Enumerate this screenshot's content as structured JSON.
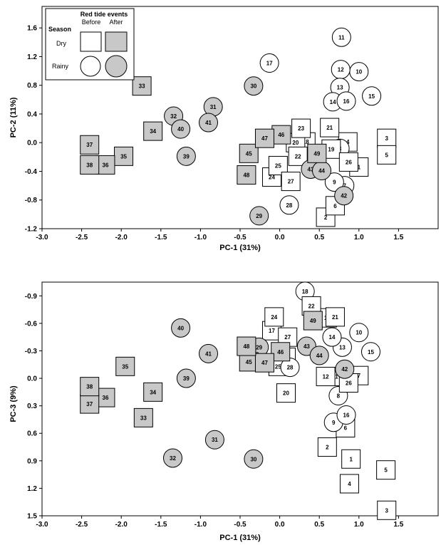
{
  "chart_data": [
    {
      "type": "scatter",
      "xlabel": "PC-1 (31%)",
      "ylabel": "PC-2 (11%)",
      "xlim": [
        -3.0,
        2.0
      ],
      "ylim": [
        -1.2,
        1.9
      ],
      "x_ticks": [
        "-3.0",
        "-2.5",
        "-2.0",
        "-1.5",
        "-1.0",
        "-0.5",
        "0.0",
        "0.5",
        "1.0",
        "1.5"
      ],
      "y_ticks": [
        "-1.2",
        "-0.8",
        "-0.4",
        "0.0",
        "0.4",
        "0.8",
        "1.2",
        "1.6"
      ],
      "points": [
        {
          "id": "1",
          "x": 1.0,
          "y": -0.34,
          "shape": "square",
          "fill": "white"
        },
        {
          "id": "2",
          "x": 0.58,
          "y": -1.04,
          "shape": "square",
          "fill": "white"
        },
        {
          "id": "3",
          "x": 1.35,
          "y": 0.06,
          "shape": "square",
          "fill": "white"
        },
        {
          "id": "4",
          "x": 0.86,
          "y": 0.01,
          "shape": "square",
          "fill": "white"
        },
        {
          "id": "5",
          "x": 1.35,
          "y": -0.17,
          "shape": "square",
          "fill": "white"
        },
        {
          "id": "6",
          "x": 0.7,
          "y": -0.88,
          "shape": "square",
          "fill": "white"
        },
        {
          "id": "7",
          "x": 0.82,
          "y": -0.6,
          "shape": "circle",
          "fill": "white"
        },
        {
          "id": "8",
          "x": 0.76,
          "y": -0.08,
          "shape": "circle",
          "fill": "white"
        },
        {
          "id": "9",
          "x": 0.69,
          "y": -0.55,
          "shape": "circle",
          "fill": "white"
        },
        {
          "id": "10",
          "x": 1.0,
          "y": 0.99,
          "shape": "circle",
          "fill": "white"
        },
        {
          "id": "11",
          "x": 0.78,
          "y": 1.47,
          "shape": "circle",
          "fill": "white"
        },
        {
          "id": "12",
          "x": 0.77,
          "y": 1.02,
          "shape": "circle",
          "fill": "white"
        },
        {
          "id": "13",
          "x": 0.76,
          "y": 0.77,
          "shape": "circle",
          "fill": "white"
        },
        {
          "id": "14",
          "x": 0.67,
          "y": 0.57,
          "shape": "circle",
          "fill": "white"
        },
        {
          "id": "15",
          "x": 1.16,
          "y": 0.65,
          "shape": "circle",
          "fill": "white"
        },
        {
          "id": "16",
          "x": 0.84,
          "y": 0.58,
          "shape": "circle",
          "fill": "white"
        },
        {
          "id": "17",
          "x": -0.13,
          "y": 1.11,
          "shape": "circle",
          "fill": "white"
        },
        {
          "id": "18",
          "x": 0.33,
          "y": 0.01,
          "shape": "square",
          "fill": "white"
        },
        {
          "id": "19",
          "x": 0.65,
          "y": -0.09,
          "shape": "square",
          "fill": "white"
        },
        {
          "id": "20",
          "x": 0.2,
          "y": 0.0,
          "shape": "square",
          "fill": "white"
        },
        {
          "id": "21",
          "x": 0.63,
          "y": 0.21,
          "shape": "square",
          "fill": "white"
        },
        {
          "id": "22",
          "x": 0.23,
          "y": -0.19,
          "shape": "square",
          "fill": "white"
        },
        {
          "id": "23",
          "x": 0.27,
          "y": 0.2,
          "shape": "square",
          "fill": "white"
        },
        {
          "id": "24",
          "x": -0.1,
          "y": -0.48,
          "shape": "square",
          "fill": "white"
        },
        {
          "id": "25",
          "x": -0.02,
          "y": -0.32,
          "shape": "square",
          "fill": "white"
        },
        {
          "id": "26",
          "x": 0.87,
          "y": -0.27,
          "shape": "square",
          "fill": "white"
        },
        {
          "id": "27",
          "x": 0.14,
          "y": -0.54,
          "shape": "square",
          "fill": "white"
        },
        {
          "id": "28",
          "x": 0.12,
          "y": -0.87,
          "shape": "circle",
          "fill": "white"
        },
        {
          "id": "29",
          "x": -0.26,
          "y": -1.02,
          "shape": "circle",
          "fill": "gray"
        },
        {
          "id": "30",
          "x": -0.33,
          "y": 0.79,
          "shape": "circle",
          "fill": "gray"
        },
        {
          "id": "31",
          "x": -0.84,
          "y": 0.5,
          "shape": "circle",
          "fill": "gray"
        },
        {
          "id": "32",
          "x": -1.34,
          "y": 0.37,
          "shape": "circle",
          "fill": "gray"
        },
        {
          "id": "33",
          "x": -1.74,
          "y": 0.79,
          "shape": "square",
          "fill": "gray"
        },
        {
          "id": "34",
          "x": -1.6,
          "y": 0.16,
          "shape": "square",
          "fill": "gray"
        },
        {
          "id": "35",
          "x": -1.97,
          "y": -0.19,
          "shape": "square",
          "fill": "gray"
        },
        {
          "id": "36",
          "x": -2.2,
          "y": -0.31,
          "shape": "square",
          "fill": "gray"
        },
        {
          "id": "37",
          "x": -2.4,
          "y": -0.03,
          "shape": "square",
          "fill": "gray"
        },
        {
          "id": "38",
          "x": -2.4,
          "y": -0.31,
          "shape": "square",
          "fill": "gray"
        },
        {
          "id": "39",
          "x": -1.18,
          "y": -0.19,
          "shape": "circle",
          "fill": "gray"
        },
        {
          "id": "40",
          "x": -1.25,
          "y": 0.19,
          "shape": "circle",
          "fill": "gray"
        },
        {
          "id": "41",
          "x": -0.9,
          "y": 0.28,
          "shape": "circle",
          "fill": "gray"
        },
        {
          "id": "42",
          "x": 0.81,
          "y": -0.74,
          "shape": "circle",
          "fill": "gray"
        },
        {
          "id": "43",
          "x": 0.39,
          "y": -0.37,
          "shape": "circle",
          "fill": "gray"
        },
        {
          "id": "44",
          "x": 0.53,
          "y": -0.39,
          "shape": "circle",
          "fill": "gray"
        },
        {
          "id": "45",
          "x": -0.39,
          "y": -0.15,
          "shape": "square",
          "fill": "gray"
        },
        {
          "id": "46",
          "x": 0.02,
          "y": 0.11,
          "shape": "square",
          "fill": "gray"
        },
        {
          "id": "47",
          "x": -0.19,
          "y": 0.06,
          "shape": "square",
          "fill": "gray"
        },
        {
          "id": "48",
          "x": -0.42,
          "y": -0.45,
          "shape": "square",
          "fill": "gray"
        },
        {
          "id": "49",
          "x": 0.47,
          "y": -0.15,
          "shape": "square",
          "fill": "gray"
        }
      ]
    },
    {
      "type": "scatter",
      "xlabel": "PC-1 (31%)",
      "ylabel": "PC-3 (9%)",
      "xlim": [
        -3.0,
        2.0
      ],
      "ylim": [
        1.5,
        -1.05
      ],
      "x_ticks": [
        "-3.0",
        "-2.5",
        "-2.0",
        "-1.5",
        "-1.0",
        "-0.5",
        "0.0",
        "0.5",
        "1.0",
        "1.5"
      ],
      "y_ticks": [
        "-0.9",
        "-0.6",
        "-0.3",
        "0.0",
        "0.3",
        "0.6",
        "0.9",
        "1.2",
        "1.5"
      ],
      "points": [
        {
          "id": "1",
          "x": 0.9,
          "y": 0.88,
          "shape": "square",
          "fill": "white"
        },
        {
          "id": "2",
          "x": 0.6,
          "y": 0.75,
          "shape": "square",
          "fill": "white"
        },
        {
          "id": "3",
          "x": 1.35,
          "y": 1.44,
          "shape": "square",
          "fill": "white"
        },
        {
          "id": "4",
          "x": 0.88,
          "y": 1.15,
          "shape": "square",
          "fill": "white"
        },
        {
          "id": "5",
          "x": 1.34,
          "y": 1.0,
          "shape": "square",
          "fill": "white"
        },
        {
          "id": "6",
          "x": 0.83,
          "y": 0.54,
          "shape": "square",
          "fill": "white"
        },
        {
          "id": "7",
          "x": 1.0,
          "y": -0.03,
          "shape": "square",
          "fill": "white"
        },
        {
          "id": "8",
          "x": 0.74,
          "y": 0.19,
          "shape": "circle",
          "fill": "white"
        },
        {
          "id": "9",
          "x": 0.68,
          "y": 0.48,
          "shape": "circle",
          "fill": "white"
        },
        {
          "id": "10",
          "x": 1.0,
          "y": -0.5,
          "shape": "circle",
          "fill": "white"
        },
        {
          "id": "11",
          "x": 0.7,
          "y": -0.02,
          "shape": "square",
          "fill": "white"
        },
        {
          "id": "12",
          "x": 0.58,
          "y": -0.02,
          "shape": "square",
          "fill": "white"
        },
        {
          "id": "13",
          "x": 0.79,
          "y": -0.34,
          "shape": "circle",
          "fill": "white"
        },
        {
          "id": "14",
          "x": 0.66,
          "y": -0.45,
          "shape": "circle",
          "fill": "white"
        },
        {
          "id": "15",
          "x": 1.15,
          "y": -0.29,
          "shape": "circle",
          "fill": "white"
        },
        {
          "id": "16",
          "x": 0.84,
          "y": 0.4,
          "shape": "circle",
          "fill": "white"
        },
        {
          "id": "17",
          "x": -0.1,
          "y": -0.52,
          "shape": "square",
          "fill": "white"
        },
        {
          "id": "18",
          "x": 0.32,
          "y": -0.95,
          "shape": "circle",
          "fill": "white"
        },
        {
          "id": "19",
          "x": 0.6,
          "y": -0.66,
          "shape": "square",
          "fill": "white"
        },
        {
          "id": "20",
          "x": 0.08,
          "y": 0.16,
          "shape": "square",
          "fill": "white"
        },
        {
          "id": "21",
          "x": 0.7,
          "y": -0.67,
          "shape": "square",
          "fill": "white"
        },
        {
          "id": "22",
          "x": 0.4,
          "y": -0.79,
          "shape": "square",
          "fill": "white"
        },
        {
          "id": "23",
          "x": 0.08,
          "y": -0.23,
          "shape": "square",
          "fill": "white"
        },
        {
          "id": "24",
          "x": -0.07,
          "y": -0.67,
          "shape": "square",
          "fill": "white"
        },
        {
          "id": "25",
          "x": -0.02,
          "y": -0.13,
          "shape": "square",
          "fill": "white"
        },
        {
          "id": "26",
          "x": 0.87,
          "y": 0.05,
          "shape": "square",
          "fill": "white"
        },
        {
          "id": "27",
          "x": 0.1,
          "y": -0.45,
          "shape": "square",
          "fill": "white"
        },
        {
          "id": "28",
          "x": 0.13,
          "y": -0.12,
          "shape": "circle",
          "fill": "white"
        },
        {
          "id": "29",
          "x": -0.26,
          "y": -0.34,
          "shape": "circle",
          "fill": "gray"
        },
        {
          "id": "30",
          "x": -0.33,
          "y": 0.88,
          "shape": "circle",
          "fill": "gray"
        },
        {
          "id": "31",
          "x": -0.82,
          "y": 0.67,
          "shape": "circle",
          "fill": "gray"
        },
        {
          "id": "32",
          "x": -1.35,
          "y": 0.87,
          "shape": "circle",
          "fill": "gray"
        },
        {
          "id": "33",
          "x": -1.72,
          "y": 0.43,
          "shape": "square",
          "fill": "gray"
        },
        {
          "id": "34",
          "x": -1.6,
          "y": 0.15,
          "shape": "square",
          "fill": "gray"
        },
        {
          "id": "35",
          "x": -1.95,
          "y": -0.13,
          "shape": "square",
          "fill": "gray"
        },
        {
          "id": "36",
          "x": -2.2,
          "y": 0.21,
          "shape": "square",
          "fill": "gray"
        },
        {
          "id": "37",
          "x": -2.4,
          "y": 0.28,
          "shape": "square",
          "fill": "gray"
        },
        {
          "id": "38",
          "x": -2.4,
          "y": 0.09,
          "shape": "square",
          "fill": "gray"
        },
        {
          "id": "39",
          "x": -1.18,
          "y": 0.0,
          "shape": "circle",
          "fill": "gray"
        },
        {
          "id": "40",
          "x": -1.25,
          "y": -0.55,
          "shape": "circle",
          "fill": "gray"
        },
        {
          "id": "41",
          "x": -0.9,
          "y": -0.27,
          "shape": "circle",
          "fill": "gray"
        },
        {
          "id": "42",
          "x": 0.82,
          "y": -0.1,
          "shape": "circle",
          "fill": "gray"
        },
        {
          "id": "43",
          "x": 0.34,
          "y": -0.35,
          "shape": "circle",
          "fill": "gray"
        },
        {
          "id": "44",
          "x": 0.5,
          "y": -0.25,
          "shape": "circle",
          "fill": "gray"
        },
        {
          "id": "45",
          "x": -0.39,
          "y": -0.18,
          "shape": "square",
          "fill": "gray"
        },
        {
          "id": "46",
          "x": 0.01,
          "y": -0.29,
          "shape": "square",
          "fill": "gray"
        },
        {
          "id": "47",
          "x": -0.19,
          "y": -0.17,
          "shape": "square",
          "fill": "gray"
        },
        {
          "id": "48",
          "x": -0.42,
          "y": -0.35,
          "shape": "square",
          "fill": "gray"
        },
        {
          "id": "49",
          "x": 0.42,
          "y": -0.63,
          "shape": "square",
          "fill": "gray"
        }
      ]
    }
  ],
  "legend": {
    "title": "Red tide events",
    "season_label": "Season",
    "col_before": "Before",
    "col_after": "After",
    "row_dry": "Dry",
    "row_rainy": "Rainy"
  },
  "colors": {
    "marker_gray": "#c8c8c8",
    "marker_white": "#ffffff",
    "stroke": "#000000"
  }
}
